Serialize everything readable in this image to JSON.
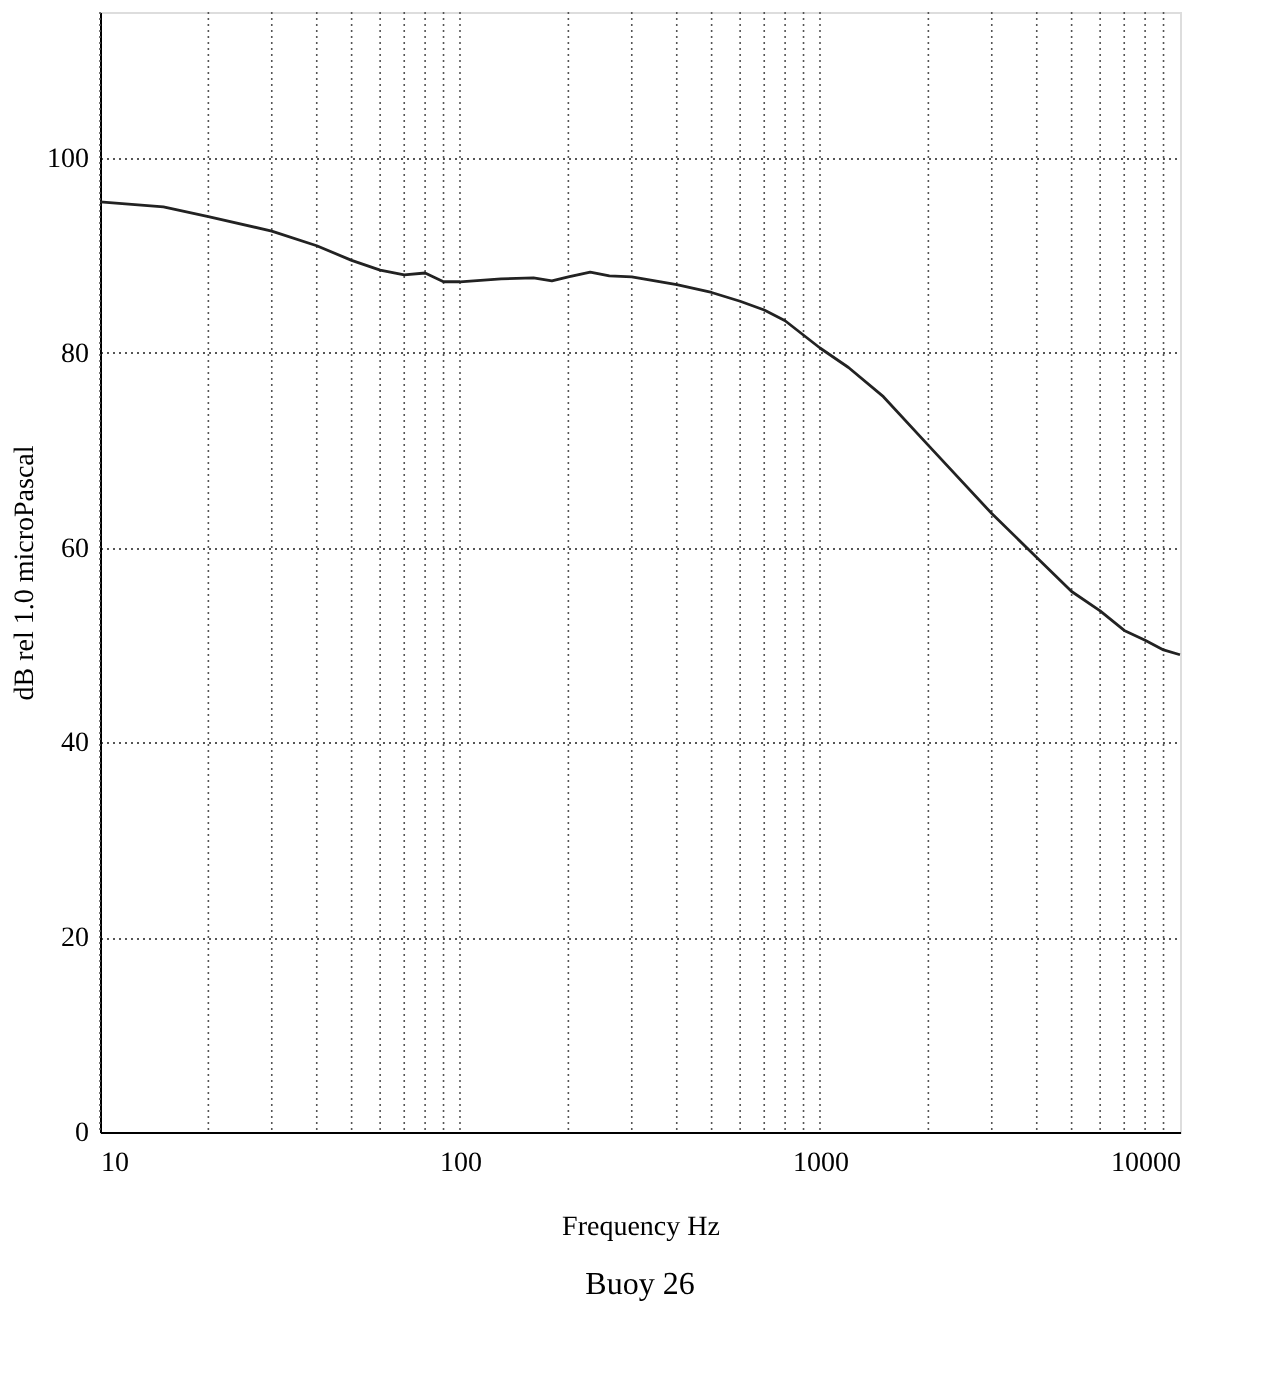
{
  "chart_data": {
    "type": "line",
    "title": "Buoy 26",
    "xlabel": "Frequency Hz",
    "ylabel": "dB rel 1.0 microPascal",
    "log": "x",
    "xlim": [
      10,
      10000
    ],
    "xticks": [
      10,
      100,
      1000,
      10000
    ],
    "ylim": [
      0,
      115
    ],
    "yticks": [
      0,
      20,
      40,
      60,
      80,
      100
    ],
    "grid": true,
    "line_style": "solid",
    "marker": "none",
    "series": [
      {
        "color": "#222222",
        "x": [
          10,
          15,
          20,
          30,
          40,
          50,
          60,
          70,
          80,
          90,
          100,
          130,
          160,
          180,
          200,
          230,
          260,
          300,
          400,
          500,
          600,
          700,
          800,
          1000,
          1200,
          1500,
          2000,
          3000,
          4000,
          5000,
          6000,
          7000,
          8000,
          9000,
          10000
        ],
        "values": [
          95.5,
          95,
          94,
          92.5,
          91,
          89.5,
          88.5,
          88,
          88.2,
          87.3,
          87.3,
          87.6,
          87.7,
          87.4,
          87.8,
          88.3,
          87.9,
          87.8,
          87,
          86.2,
          85.3,
          84.4,
          83.3,
          80.5,
          78.5,
          75.5,
          70.5,
          63.5,
          59,
          55.5,
          53.5,
          51.5,
          50.5,
          49.5,
          49
        ]
      }
    ]
  }
}
